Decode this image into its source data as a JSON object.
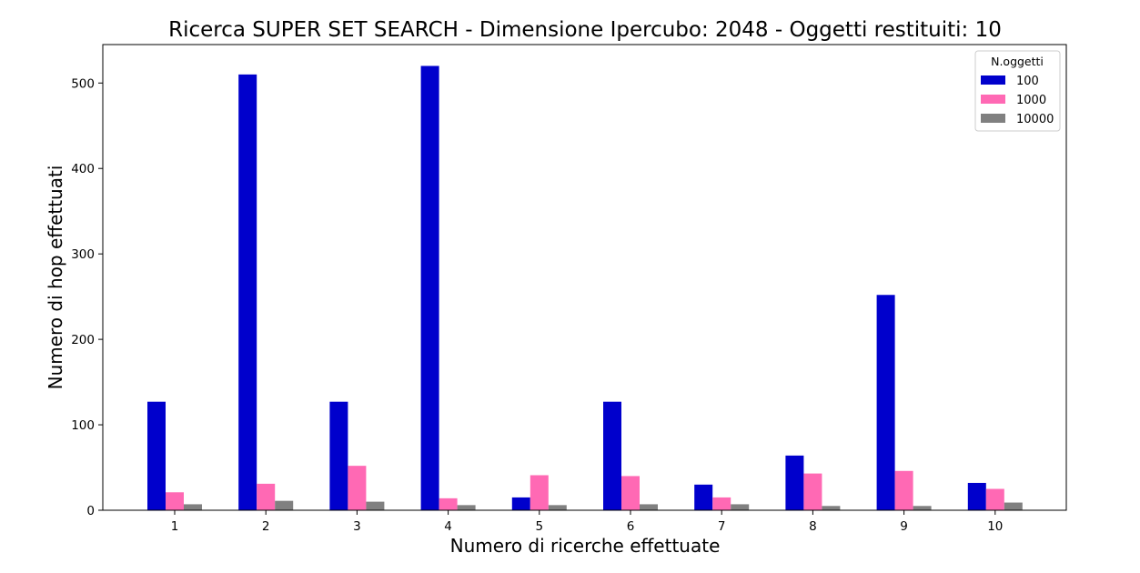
{
  "chart_data": {
    "type": "bar",
    "title": "Ricerca SUPER SET SEARCH - Dimensione Ipercubo: 2048 - Oggetti restituiti: 10",
    "xlabel": "Numero di ricerche effettuate",
    "ylabel": "Numero di hop effettuati",
    "categories": [
      "1",
      "2",
      "3",
      "4",
      "5",
      "6",
      "7",
      "8",
      "9",
      "10"
    ],
    "ylim": [
      0,
      545
    ],
    "yticks": [
      0,
      100,
      200,
      300,
      400,
      500
    ],
    "grid": false,
    "legend": {
      "title": "N.oggetti",
      "placement": "top-right"
    },
    "series": [
      {
        "name": "100",
        "color": "#0000cc",
        "values": [
          127,
          510,
          127,
          520,
          15,
          127,
          30,
          64,
          252,
          32
        ]
      },
      {
        "name": "1000",
        "color": "#ff69b4",
        "values": [
          21,
          31,
          52,
          14,
          41,
          40,
          15,
          43,
          46,
          25
        ]
      },
      {
        "name": "10000",
        "color": "#808080",
        "values": [
          7,
          11,
          10,
          6,
          6,
          7,
          7,
          5,
          5,
          9
        ]
      }
    ]
  }
}
